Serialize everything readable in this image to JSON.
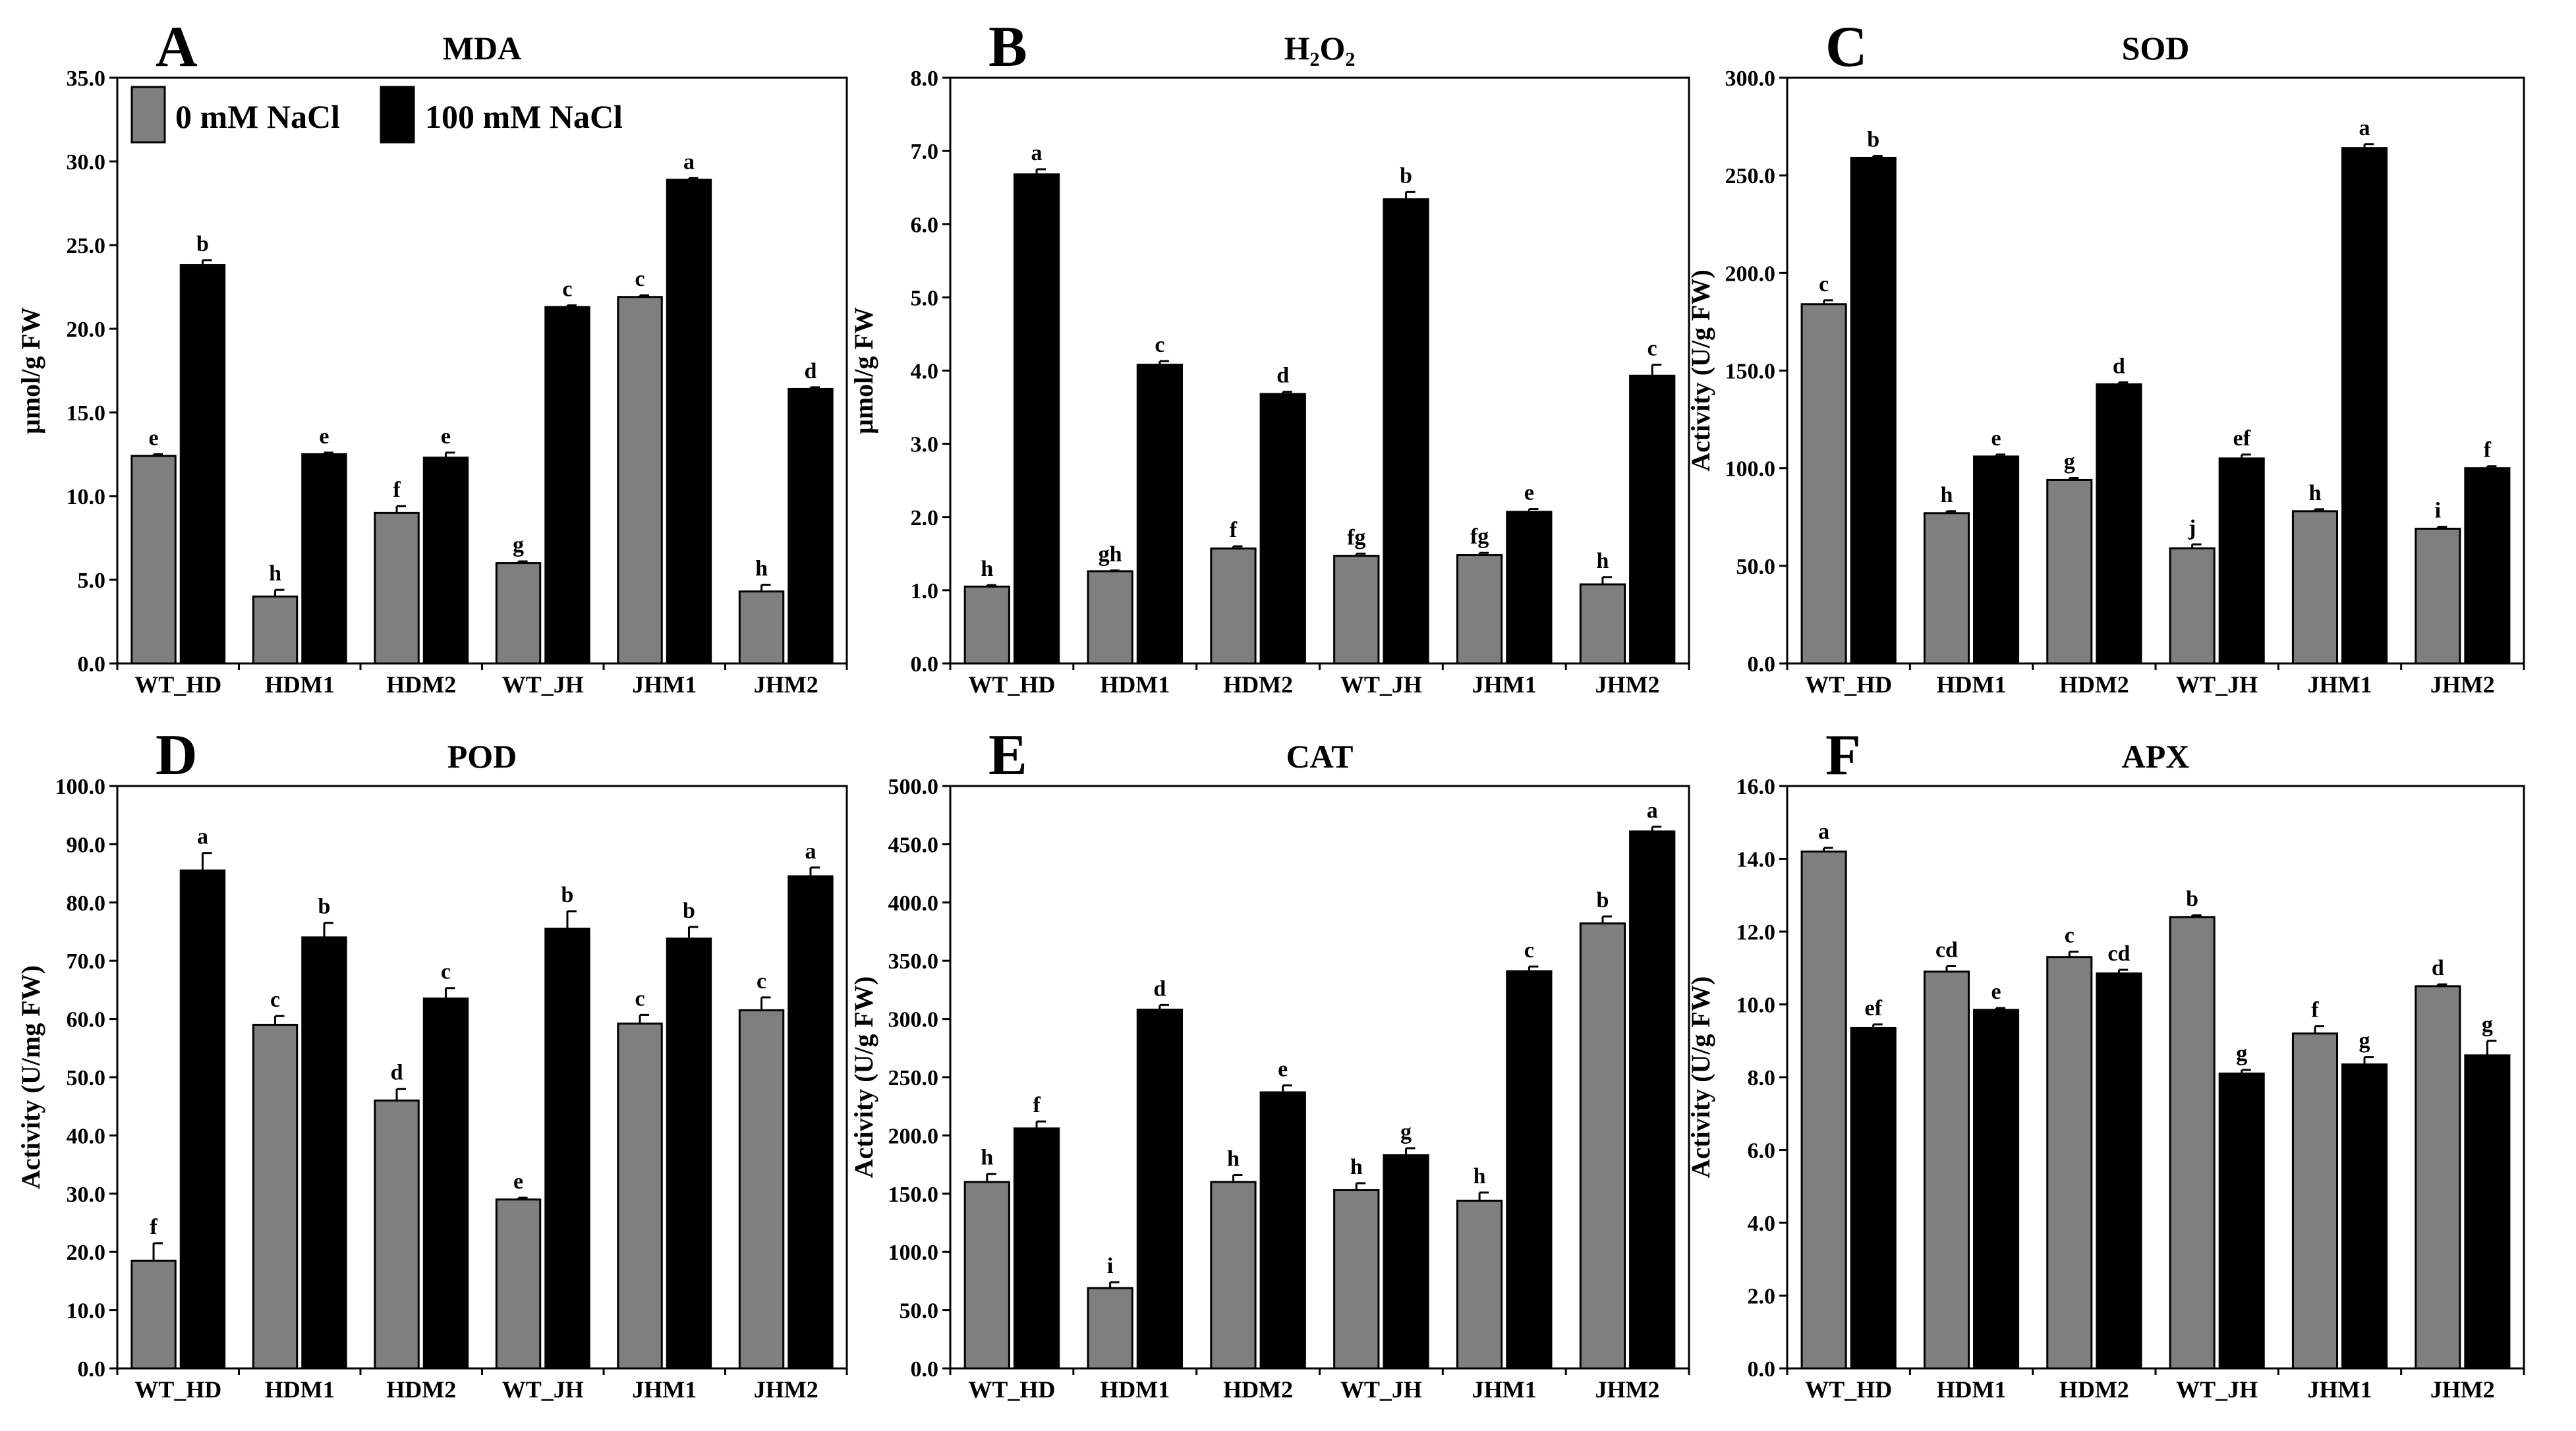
{
  "legend": {
    "items": [
      {
        "label": "0 mM NaCl",
        "color": "#7f7f7f"
      },
      {
        "label": "100 mM NaCl",
        "color": "#000000"
      }
    ]
  },
  "chart_data": [
    {
      "type": "bar",
      "letter": "A",
      "title": "MDA",
      "ylabel": "μmol/g FW",
      "ylim": [
        0,
        35
      ],
      "ytick_step": 5,
      "ytick_decimals": 1,
      "categories": [
        "WT_HD",
        "HDM1",
        "HDM2",
        "WT_JH",
        "JHM1",
        "JHM2"
      ],
      "series": [
        {
          "name": "0 mM NaCl",
          "values": [
            12.4,
            4.0,
            9.0,
            6.0,
            21.9,
            4.3
          ],
          "errors": [
            0.1,
            0.4,
            0.4,
            0.1,
            0.1,
            0.4
          ],
          "labels": [
            "e",
            "h",
            "f",
            "g",
            "c",
            "h"
          ]
        },
        {
          "name": "100 mM NaCl",
          "values": [
            23.8,
            12.5,
            12.3,
            21.3,
            28.9,
            16.4
          ],
          "errors": [
            0.3,
            0.1,
            0.3,
            0.1,
            0.1,
            0.1
          ],
          "labels": [
            "b",
            "e",
            "e",
            "c",
            "a",
            "d"
          ]
        }
      ]
    },
    {
      "type": "bar",
      "letter": "B",
      "title": "H₂O₂",
      "ylabel": "μmol/g FW",
      "ylim": [
        0,
        8
      ],
      "ytick_step": 1,
      "ytick_decimals": 1,
      "categories": [
        "WT_HD",
        "HDM1",
        "HDM2",
        "WT_JH",
        "JHM1",
        "JHM2"
      ],
      "series": [
        {
          "name": "0 mM NaCl",
          "values": [
            1.05,
            1.26,
            1.57,
            1.47,
            1.48,
            1.08
          ],
          "errors": [
            0.02,
            0.01,
            0.03,
            0.03,
            0.03,
            0.1
          ],
          "labels": [
            "h",
            "gh",
            "f",
            "fg",
            "fg",
            "h"
          ]
        },
        {
          "name": "100 mM NaCl",
          "values": [
            6.68,
            4.08,
            3.68,
            6.34,
            2.07,
            3.93
          ],
          "errors": [
            0.07,
            0.05,
            0.03,
            0.1,
            0.04,
            0.15
          ],
          "labels": [
            "a",
            "c",
            "d",
            "b",
            "e",
            "c"
          ]
        }
      ]
    },
    {
      "type": "bar",
      "letter": "C",
      "title": "SOD",
      "ylabel": "Activity (U/g FW)",
      "ylim": [
        0,
        300
      ],
      "ytick_step": 50,
      "ytick_decimals": 1,
      "categories": [
        "WT_HD",
        "HDM1",
        "HDM2",
        "WT_JH",
        "JHM1",
        "JHM2"
      ],
      "series": [
        {
          "name": "0 mM NaCl",
          "values": [
            184,
            77,
            94,
            59,
            78,
            69
          ],
          "errors": [
            2,
            1,
            1,
            2,
            1,
            1
          ],
          "labels": [
            "c",
            "h",
            "g",
            "j",
            "h",
            "i"
          ]
        },
        {
          "name": "100 mM NaCl",
          "values": [
            259,
            106,
            143,
            105,
            264,
            100
          ],
          "errors": [
            1,
            1,
            1,
            2,
            2,
            1
          ],
          "labels": [
            "b",
            "e",
            "d",
            "ef",
            "a",
            "f"
          ]
        }
      ]
    },
    {
      "type": "bar",
      "letter": "D",
      "title": "POD",
      "ylabel": "Activity (U/mg FW)",
      "ylim": [
        0,
        100
      ],
      "ytick_step": 10,
      "ytick_decimals": 1,
      "categories": [
        "WT_HD",
        "HDM1",
        "HDM2",
        "WT_JH",
        "JHM1",
        "JHM2"
      ],
      "series": [
        {
          "name": "0 mM NaCl",
          "values": [
            18.5,
            59,
            46,
            29,
            59.2,
            61.5
          ],
          "errors": [
            3,
            1.5,
            2,
            0.3,
            1.5,
            2.2
          ],
          "labels": [
            "f",
            "c",
            "d",
            "e",
            "c",
            "c"
          ]
        },
        {
          "name": "100 mM NaCl",
          "values": [
            85.5,
            74,
            63.5,
            75.5,
            73.8,
            84.5
          ],
          "errors": [
            3,
            2.5,
            1.8,
            3,
            2,
            1.5
          ],
          "labels": [
            "a",
            "b",
            "c",
            "b",
            "b",
            "a"
          ]
        }
      ]
    },
    {
      "type": "bar",
      "letter": "E",
      "title": "CAT",
      "ylabel": "Activity (U/g FW)",
      "ylim": [
        0,
        500
      ],
      "ytick_step": 50,
      "ytick_decimals": 1,
      "categories": [
        "WT_HD",
        "HDM1",
        "HDM2",
        "WT_JH",
        "JHM1",
        "JHM2"
      ],
      "series": [
        {
          "name": "0 mM NaCl",
          "values": [
            160,
            69,
            160,
            153,
            144,
            382
          ],
          "errors": [
            7,
            5,
            6,
            6,
            7,
            6
          ],
          "labels": [
            "h",
            "i",
            "h",
            "h",
            "h",
            "b"
          ]
        },
        {
          "name": "100 mM NaCl",
          "values": [
            206,
            308,
            237,
            183,
            341,
            461
          ],
          "errors": [
            6,
            4,
            6,
            6,
            4,
            4
          ],
          "labels": [
            "f",
            "d",
            "e",
            "g",
            "c",
            "a"
          ]
        }
      ]
    },
    {
      "type": "bar",
      "letter": "F",
      "title": "APX",
      "ylabel": "Activity (U/g FW)",
      "ylim": [
        0,
        16
      ],
      "ytick_step": 2,
      "ytick_decimals": 1,
      "categories": [
        "WT_HD",
        "HDM1",
        "HDM2",
        "WT_JH",
        "JHM1",
        "JHM2"
      ],
      "series": [
        {
          "name": "0 mM NaCl",
          "values": [
            14.2,
            10.9,
            11.3,
            12.4,
            9.2,
            10.5
          ],
          "errors": [
            0.1,
            0.15,
            0.15,
            0.05,
            0.2,
            0.05
          ],
          "labels": [
            "a",
            "cd",
            "c",
            "b",
            "f",
            "d"
          ]
        },
        {
          "name": "100 mM NaCl",
          "values": [
            9.35,
            9.85,
            10.85,
            8.1,
            8.35,
            8.6
          ],
          "errors": [
            0.1,
            0.05,
            0.1,
            0.1,
            0.2,
            0.4
          ],
          "labels": [
            "ef",
            "e",
            "cd",
            "g",
            "g",
            "g"
          ]
        }
      ]
    }
  ]
}
